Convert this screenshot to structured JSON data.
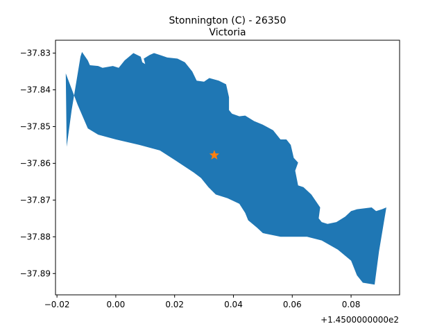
{
  "chart_data": {
    "type": "map",
    "title": "Stonnington (C) - 26350",
    "subtitle": "Victoria",
    "x_offset_label": "+1.4500000000e2",
    "x_offset": 145.0,
    "xlim": [
      -0.0205,
      0.0965
    ],
    "ylim": [
      -37.8958,
      -37.8265
    ],
    "x_ticks": [
      -0.02,
      0.0,
      0.02,
      0.04,
      0.06,
      0.08
    ],
    "x_tick_labels": [
      "−0.02",
      "0.00",
      "0.02",
      "0.04",
      "0.06",
      "0.08"
    ],
    "y_ticks": [
      -37.83,
      -37.84,
      -37.85,
      -37.86,
      -37.87,
      -37.88,
      -37.89
    ],
    "y_tick_labels": [
      "−37.83",
      "−37.84",
      "−37.85",
      "−37.86",
      "−37.87",
      "−37.88",
      "−37.89"
    ],
    "region_color": "#1f77b4",
    "marker_color": "#ff7f0e",
    "centroid": [
      0.0335,
      -37.8578
    ],
    "boundary": [
      [
        -0.0167,
        -37.8555
      ],
      [
        -0.015,
        -37.8455
      ],
      [
        -0.012,
        -37.831
      ],
      [
        -0.0115,
        -37.8297
      ],
      [
        -0.0095,
        -37.832
      ],
      [
        -0.0088,
        -37.8333
      ],
      [
        -0.006,
        -37.8335
      ],
      [
        -0.0045,
        -37.834
      ],
      [
        -0.001,
        -37.8335
      ],
      [
        0.001,
        -37.834
      ],
      [
        0.003,
        -37.832
      ],
      [
        0.006,
        -37.83
      ],
      [
        0.0085,
        -37.831
      ],
      [
        0.009,
        -37.8325
      ],
      [
        0.01,
        -37.833
      ],
      [
        0.0095,
        -37.8315
      ],
      [
        0.0115,
        -37.8305
      ],
      [
        0.013,
        -37.83
      ],
      [
        0.015,
        -37.8305
      ],
      [
        0.0175,
        -37.8312
      ],
      [
        0.021,
        -37.8315
      ],
      [
        0.0235,
        -37.8325
      ],
      [
        0.026,
        -37.835
      ],
      [
        0.0275,
        -37.8375
      ],
      [
        0.03,
        -37.8378
      ],
      [
        0.0318,
        -37.8368
      ],
      [
        0.035,
        -37.8375
      ],
      [
        0.0375,
        -37.8385
      ],
      [
        0.0385,
        -37.842
      ],
      [
        0.0385,
        -37.8455
      ],
      [
        0.0395,
        -37.8465
      ],
      [
        0.042,
        -37.8472
      ],
      [
        0.044,
        -37.847
      ],
      [
        0.047,
        -37.8485
      ],
      [
        0.05,
        -37.8495
      ],
      [
        0.0535,
        -37.851
      ],
      [
        0.056,
        -37.8535
      ],
      [
        0.058,
        -37.8535
      ],
      [
        0.0595,
        -37.855
      ],
      [
        0.0605,
        -37.8585
      ],
      [
        0.062,
        -37.8598
      ],
      [
        0.061,
        -37.862
      ],
      [
        0.0615,
        -37.864
      ],
      [
        0.062,
        -37.866
      ],
      [
        0.0638,
        -37.8665
      ],
      [
        0.0665,
        -37.8685
      ],
      [
        0.0695,
        -37.872
      ],
      [
        0.069,
        -37.875
      ],
      [
        0.07,
        -37.876
      ],
      [
        0.072,
        -37.8765
      ],
      [
        0.075,
        -37.876
      ],
      [
        0.078,
        -37.8745
      ],
      [
        0.08,
        -37.873
      ],
      [
        0.082,
        -37.8725
      ],
      [
        0.087,
        -37.872
      ],
      [
        0.0885,
        -37.873
      ],
      [
        0.0905,
        -37.8725
      ],
      [
        0.092,
        -37.872
      ],
      [
        0.0895,
        -37.884
      ],
      [
        0.088,
        -37.893
      ],
      [
        0.084,
        -37.8925
      ],
      [
        0.082,
        -37.8905
      ],
      [
        0.08,
        -37.8865
      ],
      [
        0.0755,
        -37.8835
      ],
      [
        0.07,
        -37.881
      ],
      [
        0.065,
        -37.88
      ],
      [
        0.056,
        -37.88
      ],
      [
        0.05,
        -37.879
      ],
      [
        0.048,
        -37.8775
      ],
      [
        0.045,
        -37.8755
      ],
      [
        0.044,
        -37.8735
      ],
      [
        0.042,
        -37.871
      ],
      [
        0.038,
        -37.8695
      ],
      [
        0.034,
        -37.8685
      ],
      [
        0.0315,
        -37.8665
      ],
      [
        0.029,
        -37.864
      ],
      [
        0.0265,
        -37.8625
      ],
      [
        0.0195,
        -37.8588
      ],
      [
        0.015,
        -37.8565
      ],
      [
        0.008,
        -37.855
      ],
      [
        0.0,
        -37.8535
      ],
      [
        -0.006,
        -37.8522
      ],
      [
        -0.0095,
        -37.8505
      ],
      [
        -0.013,
        -37.844
      ],
      [
        -0.017,
        -37.8355
      ]
    ]
  }
}
